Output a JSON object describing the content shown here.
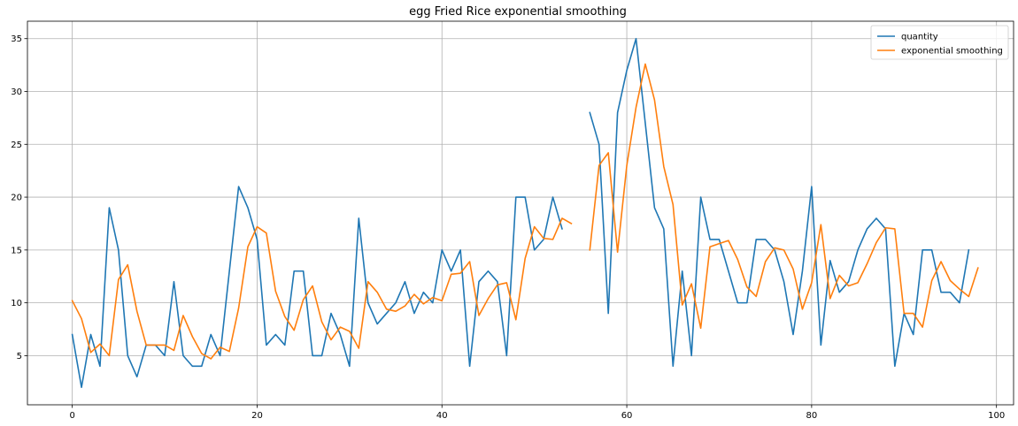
{
  "chart_data": {
    "type": "line",
    "title": "egg Fried Rice exponential smoothing",
    "xlabel": "",
    "ylabel": "",
    "xlim": [
      -4.85,
      101.85
    ],
    "ylim": [
      0.35,
      36.65
    ],
    "xticks": [
      0,
      20,
      40,
      60,
      80,
      100
    ],
    "yticks": [
      5,
      10,
      15,
      20,
      25,
      30,
      35
    ],
    "grid": true,
    "legend_position": "top-right",
    "series": [
      {
        "name": "quantity",
        "color": "#1f77b4",
        "x_start": 0,
        "values": [
          7,
          2,
          7,
          4,
          19,
          15,
          5,
          3,
          6,
          6,
          5,
          12,
          5,
          4,
          4,
          7,
          5,
          13,
          21,
          19,
          16,
          6,
          7,
          6,
          13,
          13,
          5,
          5,
          9,
          7,
          4,
          18,
          10,
          8,
          9,
          10,
          12,
          9,
          11,
          10,
          15,
          13,
          15,
          4,
          12,
          13,
          12,
          5,
          20,
          20,
          15,
          16,
          20,
          17,
          null,
          null,
          28,
          25,
          9,
          28,
          32,
          35,
          27,
          19,
          17,
          4,
          13,
          5,
          20,
          16,
          16,
          13,
          10,
          10,
          16,
          16,
          15,
          12,
          7,
          13,
          21,
          6,
          14,
          11,
          12,
          15,
          17,
          18,
          17,
          4,
          9,
          7,
          15,
          15,
          11,
          11,
          10,
          15
        ]
      },
      {
        "name": "exponential smoothing",
        "color": "#ff7f0e",
        "x_start": 0,
        "values": [
          10.2,
          8.5,
          5.3,
          6.1,
          5.0,
          12.2,
          13.6,
          9.2,
          6.0,
          6.0,
          6.0,
          5.5,
          8.8,
          6.8,
          5.2,
          4.7,
          5.8,
          5.4,
          9.5,
          15.3,
          17.2,
          16.6,
          11.1,
          8.7,
          7.4,
          10.3,
          11.6,
          8.2,
          6.5,
          7.7,
          7.3,
          5.7,
          12.0,
          11.0,
          9.4,
          9.2,
          9.7,
          10.8,
          9.9,
          10.5,
          10.2,
          12.7,
          12.8,
          13.9,
          8.8,
          10.4,
          11.7,
          11.9,
          8.4,
          14.2,
          17.2,
          16.1,
          16.0,
          18.0,
          17.5,
          null,
          15.0,
          23.0,
          24.2,
          14.8,
          23.0,
          28.5,
          32.6,
          29.2,
          22.9,
          19.3,
          9.8,
          11.8,
          7.6,
          15.3,
          15.6,
          15.9,
          14.1,
          11.5,
          10.6,
          13.9,
          15.2,
          15.0,
          13.2,
          9.4,
          11.9,
          17.4,
          10.4,
          12.6,
          11.6,
          11.9,
          13.7,
          15.7,
          17.1,
          17.0,
          9.0,
          9.0,
          7.7,
          12.1,
          13.9,
          12.1,
          11.3,
          10.6,
          13.3
        ]
      }
    ]
  }
}
